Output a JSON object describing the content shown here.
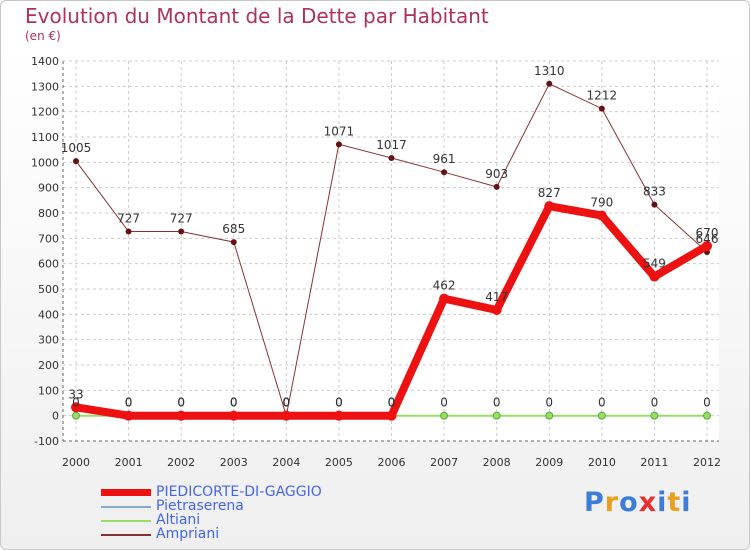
{
  "title": "Evolution du Montant de la Dette par Habitant",
  "subtitle": "(en €)",
  "chart_data": {
    "type": "line",
    "title": "Evolution du Montant de la Dette par Habitant",
    "ylabel": "(en €)",
    "ylim": [
      -100,
      1400
    ],
    "yticks": [
      -100,
      0,
      100,
      200,
      300,
      400,
      500,
      600,
      700,
      800,
      900,
      1000,
      1100,
      1200,
      1300,
      1400
    ],
    "x": [
      "2000",
      "2001",
      "2002",
      "2003",
      "2004",
      "2005",
      "2006",
      "2007",
      "2008",
      "2009",
      "2010",
      "2011",
      "2012"
    ],
    "grid": true,
    "legend_position": "bottom-left",
    "series": [
      {
        "name": "PIEDICORTE-DI-GAGGIO",
        "color": "#ee1111",
        "values": [
          33,
          0,
          0,
          0,
          0,
          0,
          0,
          462,
          417,
          827,
          790,
          549,
          670
        ]
      },
      {
        "name": "Pietraserena",
        "color": "#88aacc",
        "values": [
          null,
          0,
          0,
          0,
          0,
          0,
          0,
          null,
          null,
          null,
          null,
          null,
          null
        ]
      },
      {
        "name": "Altiani",
        "color": "#99dd66",
        "values": [
          0,
          0,
          0,
          0,
          0,
          0,
          0,
          0,
          0,
          0,
          0,
          0,
          0
        ]
      },
      {
        "name": "Ampriani",
        "color": "#883333",
        "values": [
          1005,
          727,
          727,
          685,
          0,
          1071,
          1017,
          961,
          903,
          1310,
          1212,
          833,
          646
        ]
      }
    ],
    "data_labels": [
      {
        "series": 0,
        "labels": [
          "33",
          "0",
          "0",
          "0",
          "0",
          "0",
          "0",
          "462",
          "417",
          "827",
          "790",
          "549",
          "670"
        ]
      },
      {
        "series": 2,
        "labels": [
          "0",
          "0",
          "0",
          "0",
          "0",
          "0",
          "0",
          "0",
          "0",
          "0",
          "0",
          "0",
          "0"
        ]
      },
      {
        "series": 3,
        "labels": [
          "1005",
          "727",
          "727",
          "685",
          "0",
          "1071",
          "1017",
          "961",
          "903",
          "1310",
          "1212",
          "833",
          "646"
        ]
      }
    ]
  },
  "legend": [
    {
      "label": "PIEDICORTE-DI-GAGGIO",
      "color": "#ee1111"
    },
    {
      "label": "Pietraserena",
      "color": "#88aacc"
    },
    {
      "label": "Altiani",
      "color": "#99dd66"
    },
    {
      "label": "Ampriani",
      "color": "#883333"
    }
  ],
  "logo": {
    "letters": [
      "P",
      "r",
      "o",
      "x",
      "i",
      "t",
      "i"
    ],
    "colors": [
      "#3b7dd8",
      "#e8a020",
      "#3b7dd8",
      "#e83030",
      "#3b7dd8",
      "#e8a020",
      "#3b7dd8"
    ]
  }
}
